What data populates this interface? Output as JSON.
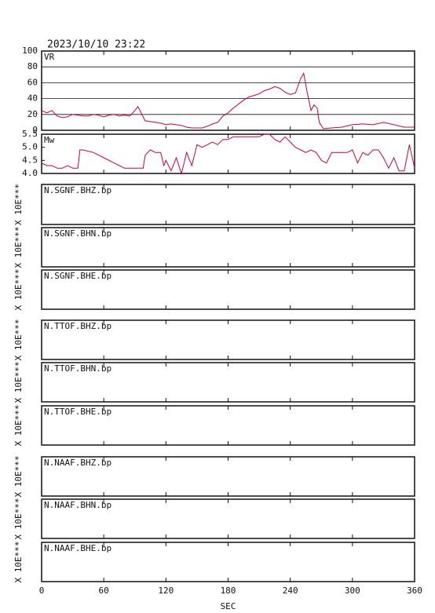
{
  "chart_data": [
    {
      "type": "line",
      "title": "2023/10/10 23:22",
      "label": "VR",
      "color": "#c8003c",
      "xlim": [
        0,
        360
      ],
      "ylim": [
        0,
        100
      ],
      "yticks": [
        0,
        20,
        40,
        60,
        80,
        100
      ],
      "grid": true,
      "x": [
        0,
        5,
        10,
        15,
        20,
        25,
        30,
        35,
        40,
        45,
        50,
        55,
        60,
        65,
        70,
        75,
        80,
        85,
        90,
        93,
        96,
        100,
        105,
        110,
        115,
        120,
        125,
        130,
        135,
        140,
        145,
        150,
        155,
        160,
        165,
        170,
        175,
        180,
        185,
        190,
        195,
        200,
        205,
        210,
        215,
        220,
        225,
        230,
        235,
        240,
        245,
        250,
        253,
        256,
        260,
        263,
        266,
        268,
        272,
        280,
        290,
        300,
        310,
        320,
        330,
        340,
        350,
        360
      ],
      "values": [
        25,
        22,
        25,
        18,
        16,
        17,
        20,
        19,
        18,
        18,
        20,
        19,
        17,
        19,
        20,
        18,
        19,
        18,
        25,
        30,
        22,
        12,
        11,
        10,
        9,
        7,
        8,
        7,
        6,
        4,
        3,
        3,
        3,
        5,
        8,
        10,
        18,
        22,
        28,
        33,
        38,
        42,
        44,
        46,
        50,
        52,
        55,
        53,
        48,
        45,
        47,
        65,
        72,
        50,
        25,
        32,
        28,
        10,
        2,
        3,
        4,
        7,
        8,
        7,
        10,
        7,
        4,
        4
      ]
    },
    {
      "type": "line",
      "label": "Mw",
      "color": "#c8003c",
      "xlim": [
        0,
        360
      ],
      "ylim": [
        4.0,
        5.5
      ],
      "yticks": [
        {
          "value": 4.0,
          "label": "4.0"
        },
        {
          "value": 4.5,
          "label": "4.5"
        },
        {
          "value": 5.0,
          "label": "5.0"
        },
        {
          "value": 5.5,
          "label": "5.5"
        }
      ],
      "x": [
        0,
        5,
        10,
        15,
        20,
        25,
        30,
        35,
        37,
        40,
        50,
        60,
        70,
        75,
        80,
        85,
        90,
        98,
        100,
        105,
        110,
        115,
        118,
        120,
        125,
        130,
        135,
        140,
        145,
        150,
        155,
        160,
        165,
        170,
        175,
        180,
        185,
        190,
        200,
        205,
        210,
        215,
        220,
        225,
        230,
        235,
        240,
        245,
        250,
        255,
        260,
        265,
        270,
        275,
        280,
        285,
        290,
        295,
        300,
        305,
        310,
        315,
        320,
        325,
        330,
        335,
        340,
        345,
        350,
        355,
        360
      ],
      "values": [
        4.4,
        4.3,
        4.3,
        4.2,
        4.2,
        4.3,
        4.2,
        4.2,
        4.9,
        4.9,
        4.8,
        4.6,
        4.4,
        4.3,
        4.2,
        4.2,
        4.2,
        4.2,
        4.7,
        4.9,
        4.8,
        4.8,
        4.3,
        4.5,
        4.1,
        4.6,
        4.0,
        4.8,
        4.3,
        5.1,
        5.0,
        5.1,
        5.2,
        5.1,
        5.3,
        5.3,
        5.4,
        5.4,
        5.4,
        5.4,
        5.4,
        5.5,
        5.5,
        5.3,
        5.2,
        5.4,
        5.2,
        5.0,
        4.9,
        4.8,
        4.9,
        4.8,
        4.5,
        4.4,
        4.8,
        4.8,
        4.8,
        4.8,
        4.9,
        4.4,
        4.8,
        4.7,
        4.9,
        4.9,
        4.6,
        4.2,
        4.6,
        4.1,
        4.1,
        5.1,
        4.2
      ]
    },
    {
      "type": "line",
      "label": "N.SGNF.BHZ.bp",
      "ylabel": "X 10E***",
      "xlim": [
        0,
        360
      ]
    },
    {
      "type": "line",
      "label": "N.SGNF.BHN.bp",
      "ylabel": "X 10E***",
      "xlim": [
        0,
        360
      ]
    },
    {
      "type": "line",
      "label": "N.SGNF.BHE.bp",
      "ylabel": "X 10E***",
      "xlim": [
        0,
        360
      ]
    },
    {
      "type": "line",
      "label": "N.TTOF.BHZ.bp",
      "ylabel": "X 10E***",
      "xlim": [
        0,
        360
      ]
    },
    {
      "type": "line",
      "label": "N.TTOF.BHN.bp",
      "ylabel": "X 10E***",
      "xlim": [
        0,
        360
      ]
    },
    {
      "type": "line",
      "label": "N.TTOF.BHE.bp",
      "ylabel": "X 10E***",
      "xlim": [
        0,
        360
      ]
    },
    {
      "type": "line",
      "label": "N.NAAF.BHZ.bp",
      "ylabel": "X 10E***",
      "xlim": [
        0,
        360
      ]
    },
    {
      "type": "line",
      "label": "N.NAAF.BHN.bp",
      "ylabel": "X 10E***",
      "xlim": [
        0,
        360
      ]
    },
    {
      "type": "line",
      "label": "N.NAAF.BHE.bp",
      "ylabel": "X 10E***",
      "xlim": [
        0,
        360
      ],
      "xlabel": "SEC",
      "xticks": [
        0,
        60,
        120,
        180,
        240,
        300,
        360
      ]
    }
  ]
}
